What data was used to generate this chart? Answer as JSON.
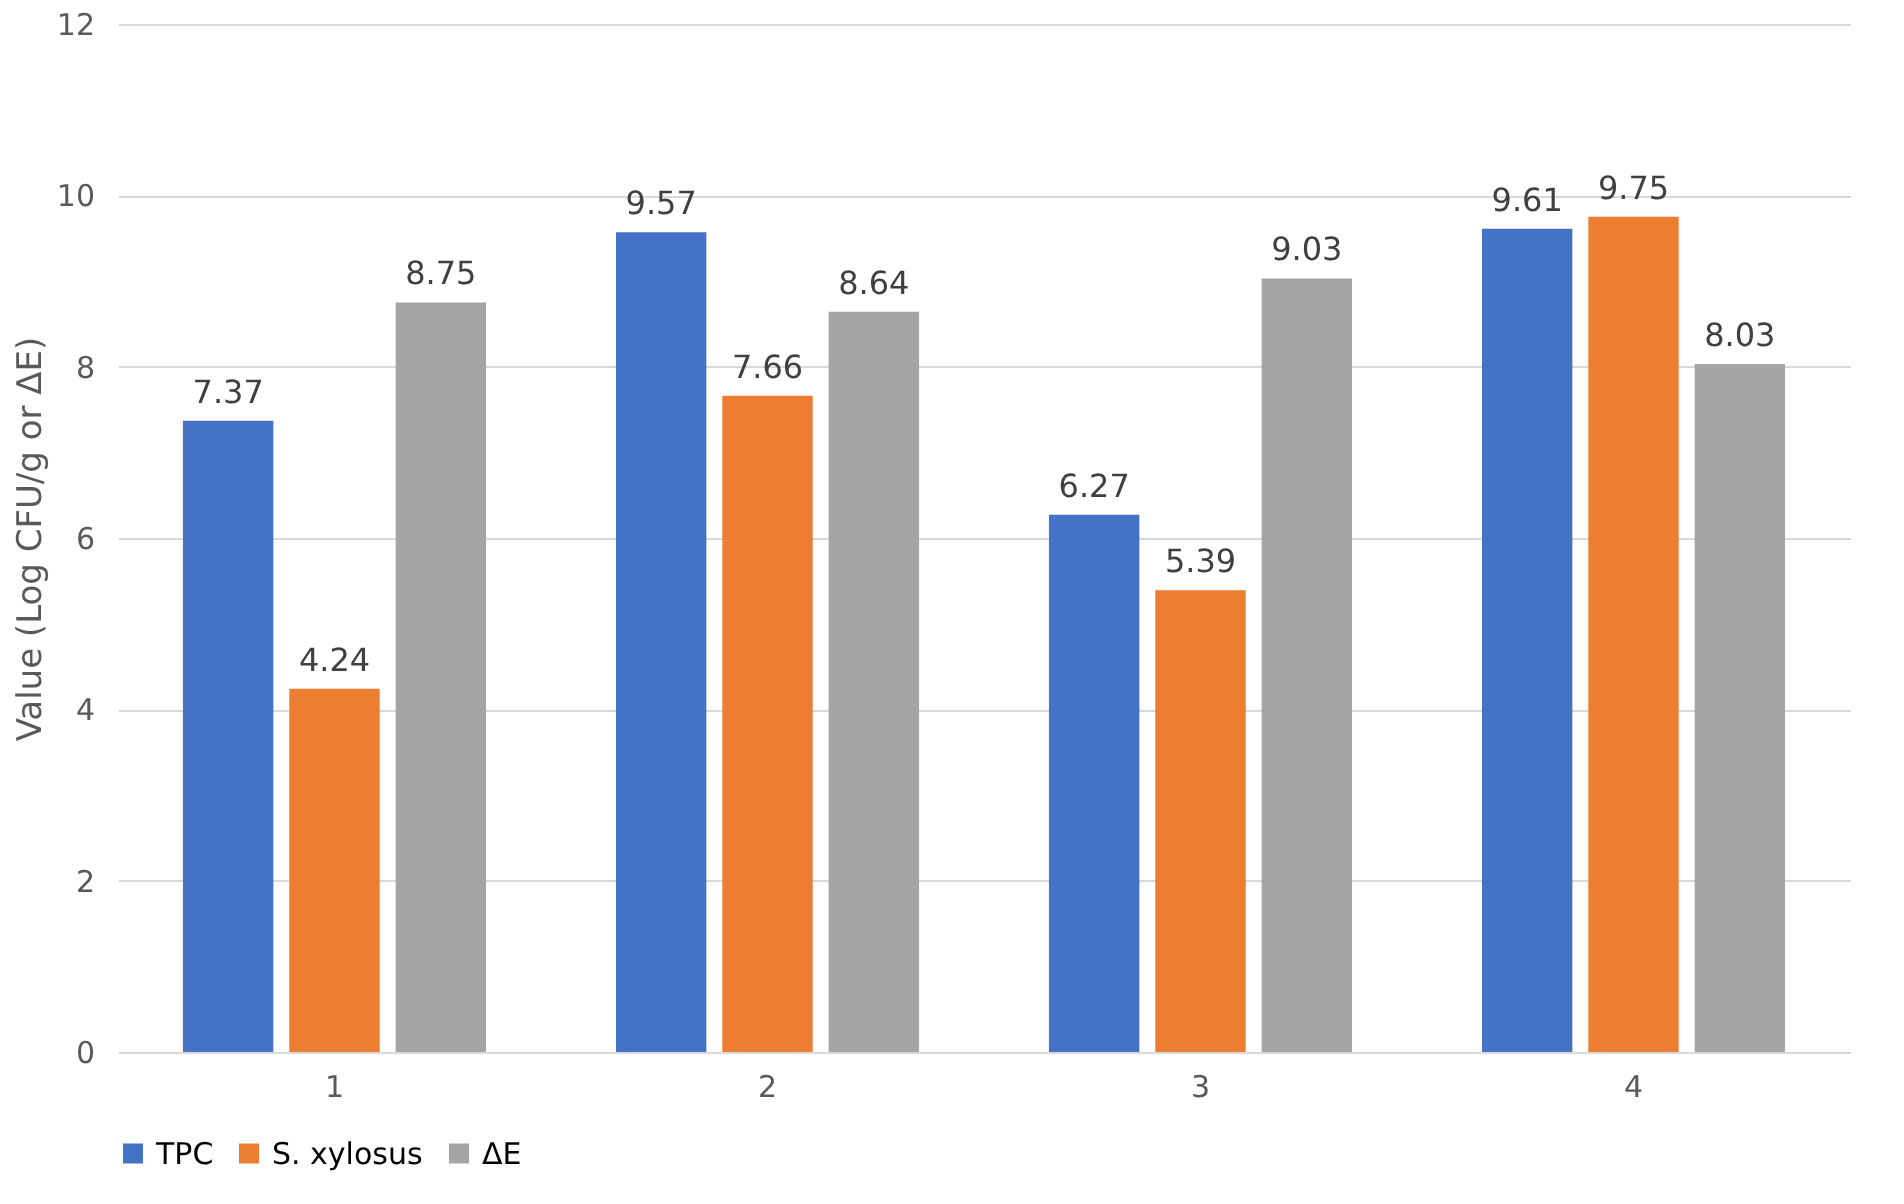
{
  "chart_data": {
    "type": "bar",
    "ylabel": "Value (Log CFU/g or ΔE)",
    "categories": [
      "1",
      "2",
      "3",
      "4"
    ],
    "series": [
      {
        "name": "TPC",
        "color": "#4472c4",
        "values": [
          7.37,
          9.57,
          6.27,
          9.61
        ]
      },
      {
        "name": "S. xylosus",
        "color": "#ed7d31",
        "values": [
          4.24,
          7.66,
          5.39,
          9.75
        ]
      },
      {
        "name": "ΔE",
        "color": "#a5a5a5",
        "values": [
          8.75,
          8.64,
          9.03,
          8.03
        ]
      }
    ],
    "ylim": [
      0,
      12
    ],
    "yticks": [
      0,
      2,
      4,
      6,
      8,
      10,
      12
    ],
    "grid": "y",
    "legend": "bottom",
    "data_labels": true
  }
}
